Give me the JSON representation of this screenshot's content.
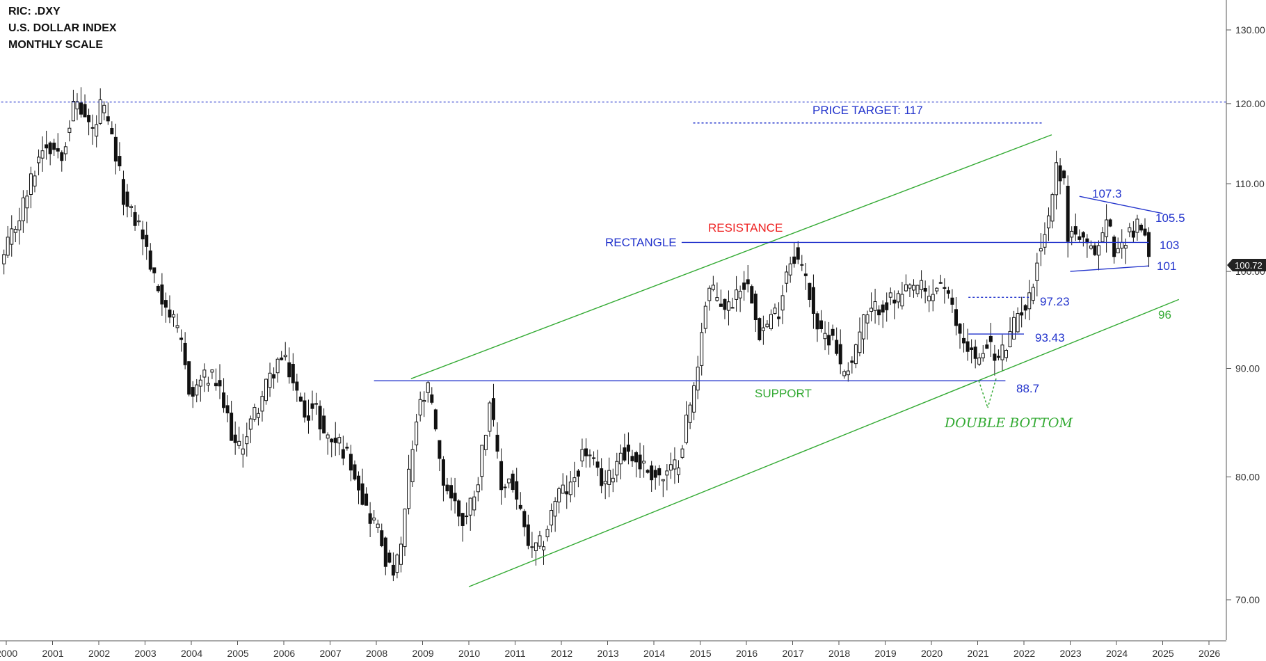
{
  "header": {
    "ric": "RIC: .DXY",
    "name": "U.S. DOLLAR INDEX",
    "scale": "MONTHLY SCALE"
  },
  "colors": {
    "candle": "#111111",
    "blue_line": "#2233cc",
    "green_line": "#33aa33",
    "resistance_text": "#ee2222",
    "support_text": "#33aa33",
    "price_tag_bg": "#222222",
    "price_tag_text": "#ffffff"
  },
  "annotations": {
    "price_target": "PRICE TARGET: 117",
    "rectangle": "RECTANGLE",
    "resistance": "RESISTANCE",
    "support": "SUPPORT",
    "double_bottom": "DOUBLE BOTTOM",
    "l107": "107.3",
    "l1055": "105.5",
    "l103": "103",
    "l101": "101",
    "l9723": "97.23",
    "l9343": "93.43",
    "l887": "88.7",
    "l96": "96",
    "last_price": "100.72"
  },
  "chart_data": {
    "type": "candlestick",
    "title": "U.S. DOLLAR INDEX",
    "scale": "log",
    "ylim": [
      66,
      136
    ],
    "y_ticks": [
      "130.00",
      "120.00",
      "110.00",
      "100.00",
      "90.00",
      "80.00",
      "70.00"
    ],
    "x_ticks": [
      "2000",
      "2001",
      "2002",
      "2003",
      "2004",
      "2005",
      "2006",
      "2007",
      "2008",
      "2009",
      "2010",
      "2011",
      "2012",
      "2013",
      "2014",
      "2015",
      "2016",
      "2017",
      "2018",
      "2019",
      "2020",
      "2021",
      "2022",
      "2023",
      "2024",
      "2025",
      "2026"
    ],
    "close_path": [
      [
        1999.95,
        101.5
      ],
      [
        2000.4,
        108
      ],
      [
        2000.8,
        115
      ],
      [
        2001.2,
        114
      ],
      [
        2001.5,
        120.5
      ],
      [
        2001.9,
        116
      ],
      [
        2002.05,
        120
      ],
      [
        2002.3,
        115
      ],
      [
        2002.6,
        107
      ],
      [
        2002.9,
        105
      ],
      [
        2003.2,
        99
      ],
      [
        2003.5,
        96
      ],
      [
        2003.8,
        92
      ],
      [
        2004.0,
        87
      ],
      [
        2004.2,
        89
      ],
      [
        2004.5,
        89
      ],
      [
        2004.8,
        85
      ],
      [
        2005.0,
        82
      ],
      [
        2005.3,
        85
      ],
      [
        2005.6,
        88
      ],
      [
        2005.9,
        91
      ],
      [
        2006.1,
        90
      ],
      [
        2006.4,
        86
      ],
      [
        2006.7,
        86
      ],
      [
        2006.9,
        83.5
      ],
      [
        2007.2,
        83
      ],
      [
        2007.5,
        81
      ],
      [
        2007.8,
        77
      ],
      [
        2008.0,
        76
      ],
      [
        2008.3,
        72
      ],
      [
        2008.5,
        73
      ],
      [
        2008.7,
        80
      ],
      [
        2008.9,
        86
      ],
      [
        2009.15,
        88
      ],
      [
        2009.4,
        80
      ],
      [
        2009.6,
        78.5
      ],
      [
        2009.9,
        76
      ],
      [
        2010.2,
        80
      ],
      [
        2010.45,
        87
      ],
      [
        2010.7,
        79
      ],
      [
        2010.9,
        80
      ],
      [
        2011.2,
        75.5
      ],
      [
        2011.35,
        73.5
      ],
      [
        2011.6,
        74.5
      ],
      [
        2011.9,
        78.5
      ],
      [
        2012.2,
        79
      ],
      [
        2012.5,
        82.5
      ],
      [
        2012.8,
        80
      ],
      [
        2013.0,
        79.5
      ],
      [
        2013.3,
        82.5
      ],
      [
        2013.6,
        81.5
      ],
      [
        2013.9,
        80.5
      ],
      [
        2014.2,
        79.8
      ],
      [
        2014.5,
        81
      ],
      [
        2014.7,
        85
      ],
      [
        2014.9,
        88.5
      ],
      [
        2015.05,
        95
      ],
      [
        2015.2,
        98
      ],
      [
        2015.6,
        96
      ],
      [
        2015.9,
        99
      ],
      [
        2016.1,
        98
      ],
      [
        2016.3,
        93.5
      ],
      [
        2016.7,
        96
      ],
      [
        2016.9,
        101
      ],
      [
        2017.05,
        102
      ],
      [
        2017.3,
        99
      ],
      [
        2017.6,
        93
      ],
      [
        2017.9,
        93.5
      ],
      [
        2018.05,
        89.5
      ],
      [
        2018.3,
        91
      ],
      [
        2018.5,
        94.5
      ],
      [
        2018.9,
        96.5
      ],
      [
        2019.3,
        97
      ],
      [
        2019.7,
        98.5
      ],
      [
        2019.95,
        97
      ],
      [
        2020.2,
        99
      ],
      [
        2020.4,
        96.5
      ],
      [
        2020.6,
        93.5
      ],
      [
        2020.9,
        91.5
      ],
      [
        2021.0,
        90
      ],
      [
        2021.2,
        93
      ],
      [
        2021.4,
        90.5
      ],
      [
        2021.7,
        93
      ],
      [
        2021.9,
        96
      ],
      [
        2022.1,
        96.5
      ],
      [
        2022.3,
        102
      ],
      [
        2022.5,
        105
      ],
      [
        2022.7,
        112
      ],
      [
        2022.85,
        111
      ],
      [
        2022.95,
        104
      ],
      [
        2023.1,
        104.5
      ],
      [
        2023.4,
        102
      ],
      [
        2023.6,
        102.5
      ],
      [
        2023.8,
        106
      ],
      [
        2024.0,
        101.5
      ],
      [
        2024.2,
        104
      ],
      [
        2024.4,
        105
      ],
      [
        2024.6,
        104.5
      ],
      [
        2024.7,
        100.72
      ]
    ],
    "shapes": {
      "channel_upper": [
        [
          2008.75,
          89
        ],
        [
          2022.6,
          116
        ]
      ],
      "channel_lower": [
        [
          2010.0,
          71
        ],
        [
          2025.35,
          97
        ]
      ],
      "support_line": [
        [
          2007.95,
          88.8
        ],
        [
          2021.6,
          88.8
        ]
      ],
      "resistance_line": [
        [
          2014.6,
          103.2
        ],
        [
          2024.7,
          103.2
        ]
      ],
      "triangle_top": [
        [
          2023.2,
          108.5
        ],
        [
          2025.0,
          106.5
        ]
      ],
      "triangle_bottom": [
        [
          2023.0,
          100.0
        ],
        [
          2024.7,
          100.6
        ]
      ],
      "level_9723": [
        [
          2020.8,
          97.23
        ],
        [
          2022.15,
          97.23
        ]
      ],
      "level_9343": [
        [
          2020.8,
          93.43
        ],
        [
          2022.0,
          93.43
        ]
      ],
      "price_target_line": [
        [
          2014.85,
          117.5
        ],
        [
          2022.4,
          117.5
        ]
      ],
      "top_dotted_line": [
        [
          1999.8,
          120.2
        ],
        [
          2026.4,
          120.2
        ]
      ]
    },
    "notes": {
      "price_target": 117,
      "support": 88.7,
      "resistance": 103,
      "triangle_high": 107.3,
      "triangle_mid": 105.5,
      "triangle_low": 101,
      "channel_low": 96,
      "level_a": 97.23,
      "level_b": 93.43,
      "last_close": 100.72
    }
  }
}
